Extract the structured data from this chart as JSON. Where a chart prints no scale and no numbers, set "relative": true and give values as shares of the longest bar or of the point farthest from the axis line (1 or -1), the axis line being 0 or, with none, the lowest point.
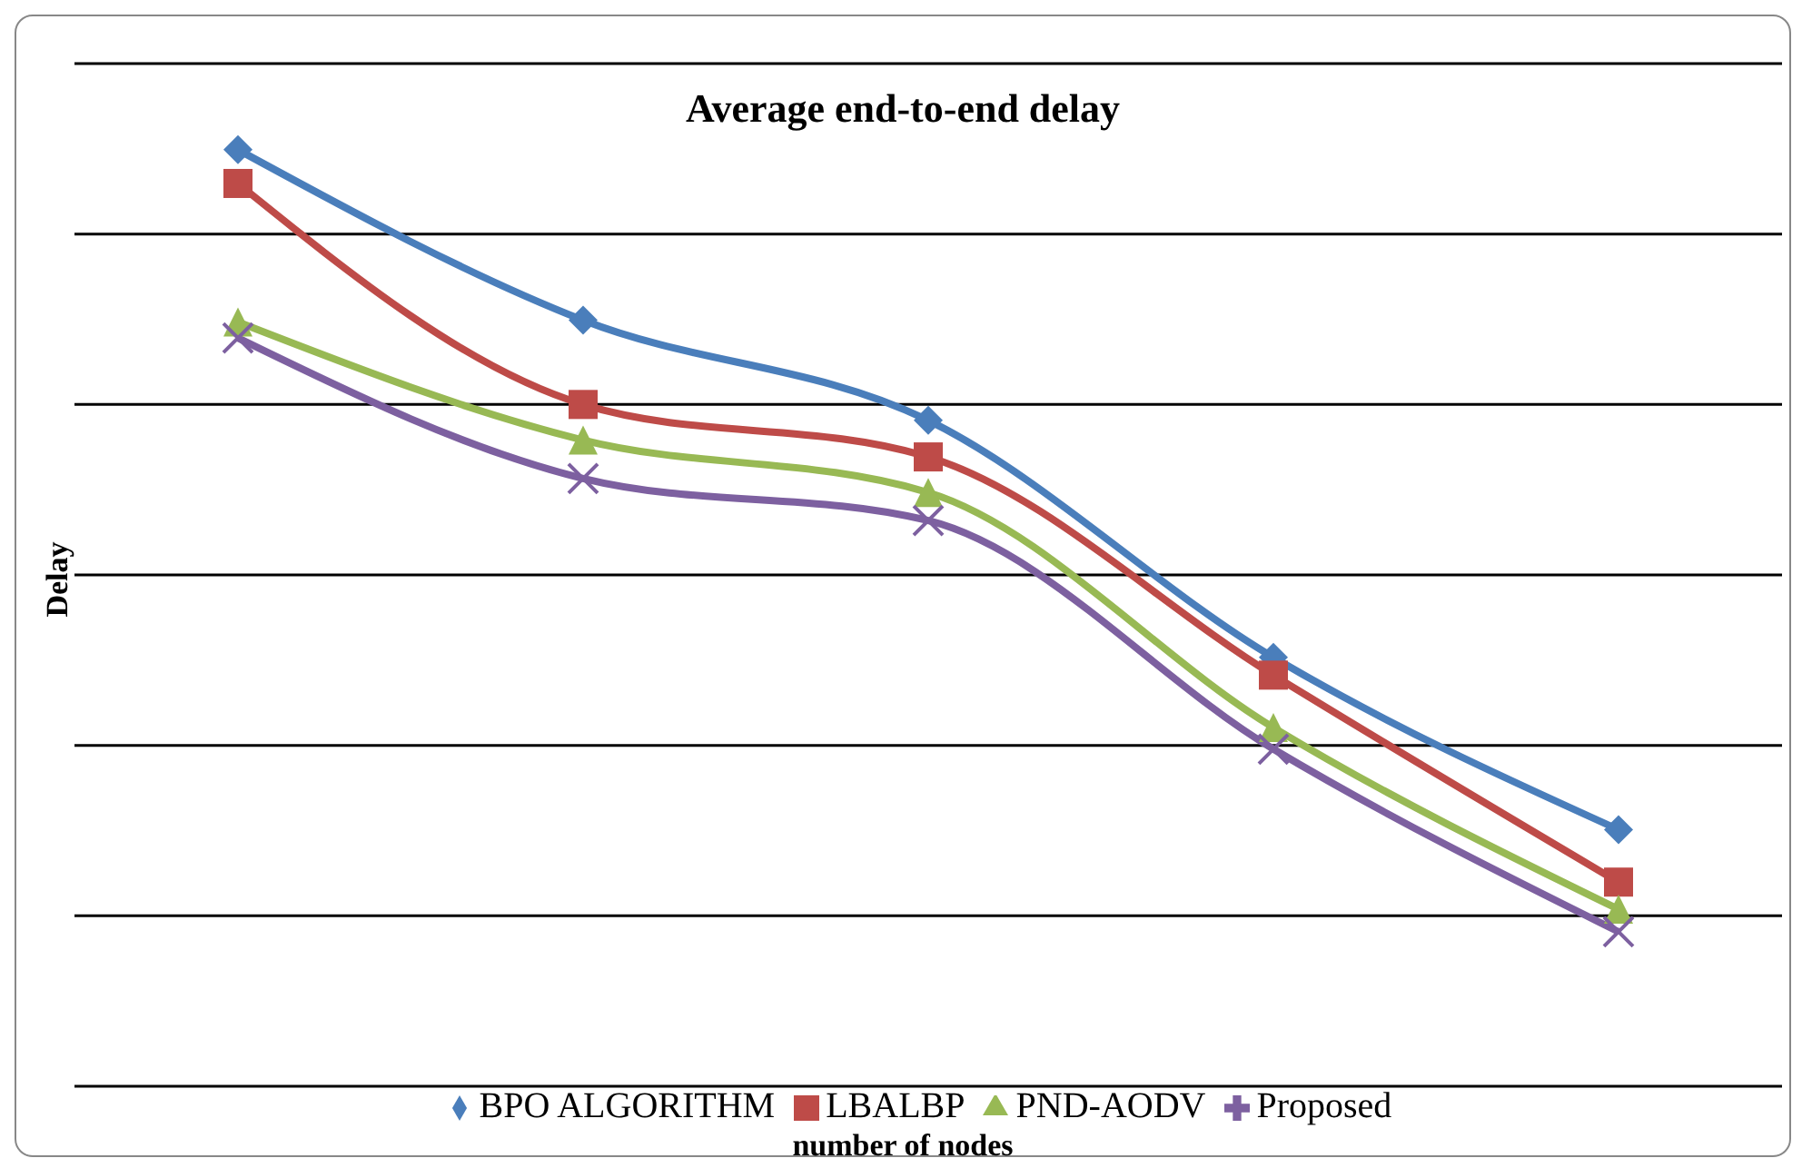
{
  "chart_data": {
    "type": "line",
    "title": "Average end-to-end delay",
    "xlabel": "number of nodes",
    "ylabel": "Delay",
    "relative": true,
    "categories": [
      null,
      null,
      null,
      null,
      null
    ],
    "series": [
      {
        "name": "BPO ALGORITHM",
        "color": "#4a7ebb",
        "marker": "diamond",
        "values": [
          1,
          0.818,
          0.711,
          0.458,
          0.274
        ]
      },
      {
        "name": "LBALBP",
        "color": "#be4b48",
        "marker": "square",
        "values": [
          0.964,
          0.728,
          0.672,
          0.439,
          0.218
        ]
      },
      {
        "name": "PND-AODV",
        "color": "#98b954",
        "marker": "triangle",
        "values": [
          0.816,
          0.69,
          0.634,
          0.383,
          0.189
        ]
      },
      {
        "name": "Proposed",
        "color": "#7d60a0",
        "marker": "cross",
        "values": [
          0.799,
          0.649,
          0.604,
          0.36,
          0.165
        ]
      }
    ],
    "grid": "y",
    "legend": "bottom"
  }
}
